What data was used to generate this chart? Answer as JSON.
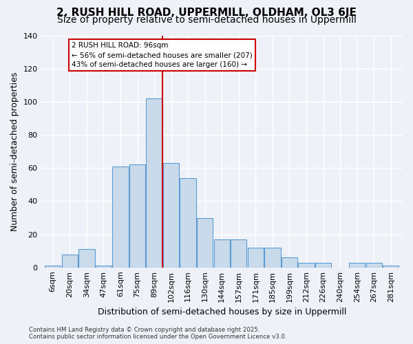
{
  "title_line1": "2, RUSH HILL ROAD, UPPERMILL, OLDHAM, OL3 6JE",
  "title_line2": "Size of property relative to semi-detached houses in Uppermill",
  "xlabel": "Distribution of semi-detached houses by size in Uppermill",
  "ylabel": "Number of semi-detached properties",
  "bin_labels": [
    "6sqm",
    "20sqm",
    "34sqm",
    "47sqm",
    "61sqm",
    "75sqm",
    "89sqm",
    "102sqm",
    "116sqm",
    "130sqm",
    "144sqm",
    "157sqm",
    "171sqm",
    "185sqm",
    "199sqm",
    "212sqm",
    "226sqm",
    "240sqm",
    "254sqm",
    "267sqm",
    "281sqm"
  ],
  "bar_values": [
    1,
    8,
    11,
    1,
    61,
    62,
    102,
    63,
    54,
    30,
    17,
    17,
    12,
    12,
    6,
    3,
    3,
    0,
    3,
    3,
    1
  ],
  "bar_color": "#c9daea",
  "bar_edge_color": "#5b9bd5",
  "property_bin_index": 7,
  "annotation_title": "2 RUSH HILL ROAD: 96sqm",
  "annotation_line2": "← 56% of semi-detached houses are smaller (207)",
  "annotation_line3": "43% of semi-detached houses are larger (160) →",
  "annotation_box_color": "#ffffff",
  "annotation_box_edge": "#cc0000",
  "vline_color": "#cc0000",
  "footer_line1": "Contains HM Land Registry data © Crown copyright and database right 2025.",
  "footer_line2": "Contains public sector information licensed under the Open Government Licence v3.0.",
  "ylim": [
    0,
    140
  ],
  "yticks": [
    0,
    20,
    40,
    60,
    80,
    100,
    120,
    140
  ],
  "background_color": "#eef2f8",
  "grid_color": "#ffffff",
  "title_fontsize": 11,
  "subtitle_fontsize": 10,
  "axis_label_fontsize": 9,
  "tick_fontsize": 8
}
